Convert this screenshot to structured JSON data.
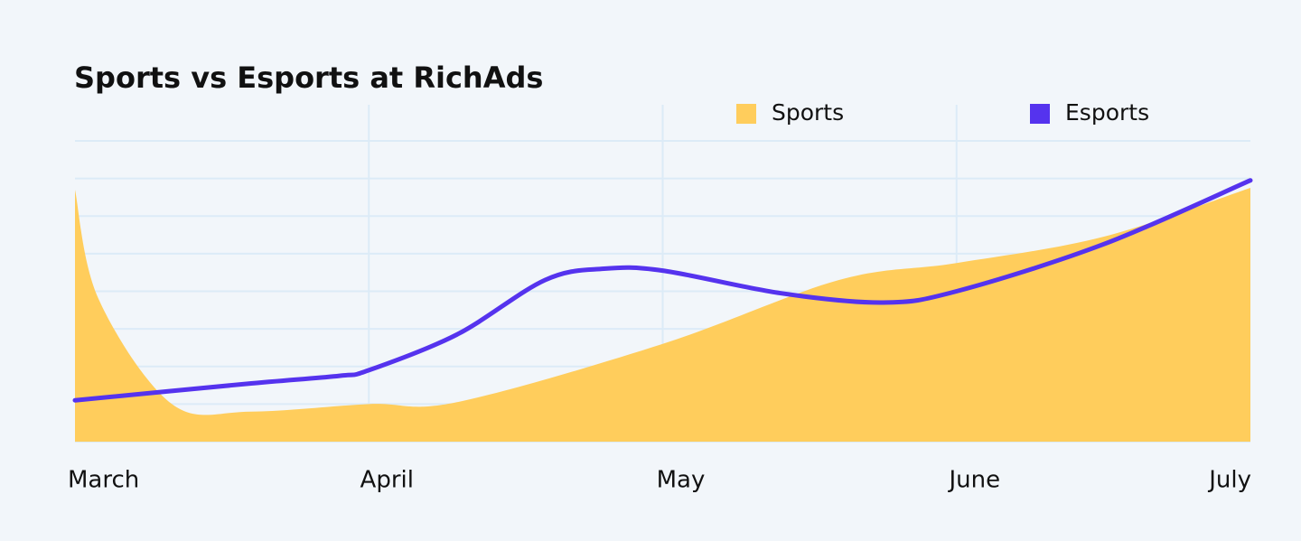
{
  "chart_data": {
    "type": "area-line",
    "title": "Sports vs Esports at RichAds",
    "xlim": [
      0,
      4
    ],
    "xticks": [
      {
        "value": 0,
        "label": "March"
      },
      {
        "value": 1,
        "label": "April"
      },
      {
        "value": 2,
        "label": "May"
      },
      {
        "value": 3,
        "label": "June"
      },
      {
        "value": 4,
        "label": "July"
      }
    ],
    "ylim": [
      0,
      8
    ],
    "yticks": [
      0,
      1,
      2,
      3,
      4,
      5,
      6,
      7,
      8
    ],
    "grid": true,
    "series": [
      {
        "name": "Sports",
        "color": "#ffcd5c",
        "kind": "area",
        "x": [
          0,
          0.08,
          0.33,
          0.6,
          1.0,
          1.3,
          2.0,
          2.6,
          3.0,
          3.5,
          4.0
        ],
        "values": [
          6.7,
          3.8,
          1.0,
          0.8,
          1.0,
          1.05,
          2.6,
          4.3,
          4.75,
          5.45,
          6.75
        ]
      },
      {
        "name": "Esports",
        "color": "#5533ee",
        "kind": "line",
        "x": [
          0,
          0.6,
          0.9,
          1.0,
          1.3,
          1.6,
          1.8,
          2.0,
          2.4,
          2.75,
          3.0,
          3.5,
          4.0
        ],
        "values": [
          1.1,
          1.55,
          1.75,
          1.9,
          2.85,
          4.3,
          4.6,
          4.55,
          3.95,
          3.7,
          4.0,
          5.25,
          6.95
        ]
      }
    ]
  }
}
